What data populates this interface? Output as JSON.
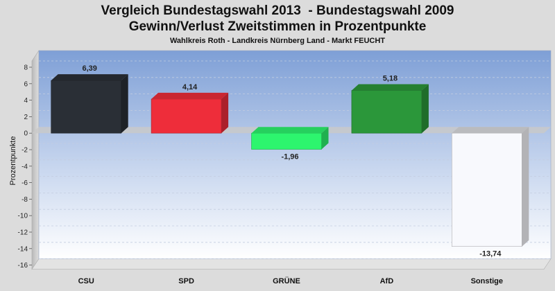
{
  "chart_data": {
    "type": "bar",
    "title": "Vergleich Bundestagswahl 2013  - Bundestagswahl 2009",
    "subtitle": "Gewinn/Verlust Zweitstimmen in Prozentpunkte",
    "caption": "Wahlkreis Roth - Landkreis Nürnberg Land - Markt FEUCHT",
    "ylabel": "Prozentpunkte",
    "xlabel": "",
    "ylim": [
      -16,
      8
    ],
    "yticks": [
      8,
      6,
      4,
      2,
      0,
      -2,
      -4,
      -6,
      -8,
      -10,
      -12,
      -14,
      -16
    ],
    "categories": [
      "CSU",
      "SPD",
      "GRÜNE",
      "AfD",
      "Sonstige"
    ],
    "values": [
      6.39,
      4.14,
      -1.96,
      5.18,
      -13.74
    ],
    "value_labels": [
      "6,39",
      "4,14",
      "-1,96",
      "5,18",
      "-13,74"
    ],
    "colors": [
      "#2a2f36",
      "#ee2d3a",
      "#2df56e",
      "#2b973a",
      "#f8f9fd"
    ],
    "grid": true
  }
}
